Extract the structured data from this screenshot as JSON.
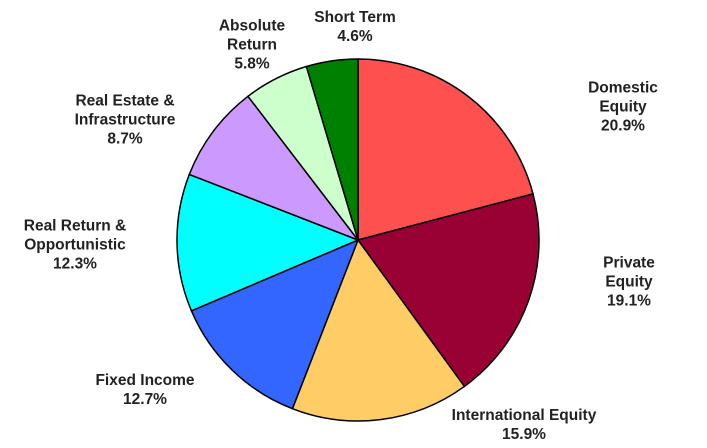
{
  "chart_data": {
    "type": "pie",
    "categories": [
      "Domestic Equity",
      "Private Equity",
      "International Equity",
      "Fixed Income",
      "Real Return &\nOpportunistic",
      "Real Estate &\nInfrastructure",
      "Absolute\nReturn",
      "Short Term"
    ],
    "values": [
      20.9,
      19.1,
      15.9,
      12.7,
      12.3,
      8.7,
      5.8,
      4.6
    ],
    "value_labels": [
      "20.9%",
      "19.1%",
      "15.9%",
      "12.7%",
      "12.3%",
      "8.7%",
      "5.8%",
      "4.6%"
    ],
    "colors": [
      "#FF5050",
      "#990033",
      "#FFCC66",
      "#3366FF",
      "#00FFFF",
      "#CC99FF",
      "#CCFFCC",
      "#008000"
    ]
  }
}
